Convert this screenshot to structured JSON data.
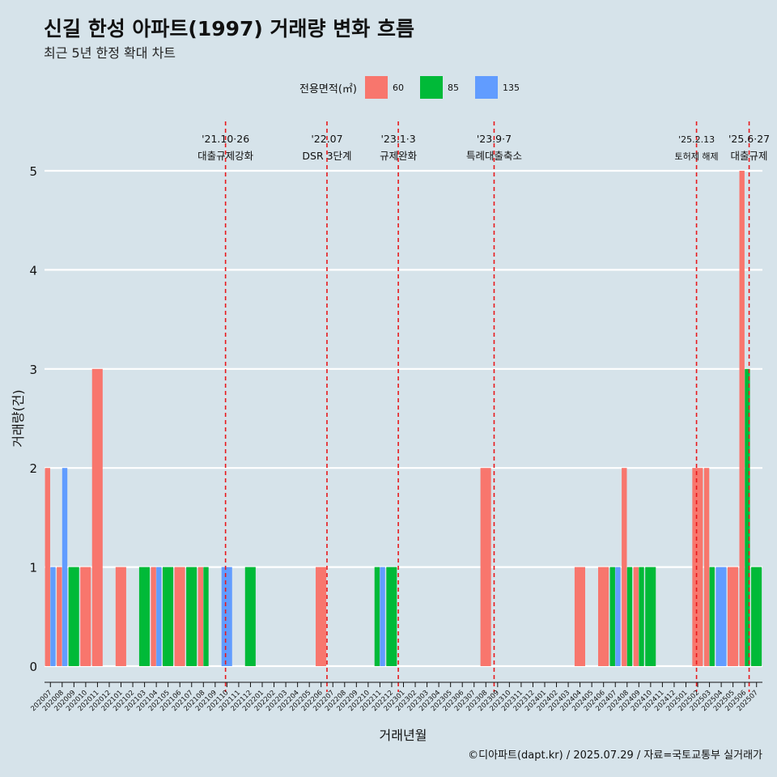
{
  "header": {
    "title": "신길 한성 아파트(1997) 거래량 변화 흐름",
    "subtitle": "최근 5년 한정 확대 차트"
  },
  "legend": {
    "title": "전용면적(㎡)",
    "items": [
      {
        "label": "60",
        "color": "#f8766d"
      },
      {
        "label": "85",
        "color": "#00ba38"
      },
      {
        "label": "135",
        "color": "#619cff"
      }
    ]
  },
  "footer": "©디아파트(dapt.kr) / 2025.07.29 / 자료=국토교통부 실거래가",
  "chart_data": {
    "type": "bar",
    "xlabel": "거래년월",
    "ylabel": "거래량(건)",
    "ylim": [
      0,
      5
    ],
    "yticks": [
      0,
      1,
      2,
      3,
      4,
      5
    ],
    "grid": true,
    "legend_position": "top",
    "categories": [
      "202007",
      "202008",
      "202009",
      "202010",
      "202011",
      "202012",
      "202101",
      "202102",
      "202103",
      "202104",
      "202105",
      "202106",
      "202107",
      "202108",
      "202109",
      "202110",
      "202111",
      "202112",
      "202201",
      "202202",
      "202203",
      "202204",
      "202205",
      "202206",
      "202207",
      "202208",
      "202209",
      "202210",
      "202211",
      "202212",
      "202301",
      "202302",
      "202303",
      "202304",
      "202305",
      "202306",
      "202307",
      "202308",
      "202309",
      "202310",
      "202311",
      "202312",
      "202401",
      "202402",
      "202403",
      "202404",
      "202405",
      "202406",
      "202407",
      "202408",
      "202409",
      "202410",
      "202411",
      "202412",
      "202501",
      "202502",
      "202503",
      "202504",
      "202505",
      "202506",
      "202507"
    ],
    "series": [
      {
        "name": "60",
        "color": "#f8766d",
        "values": [
          2,
          1,
          0,
          1,
          3,
          0,
          1,
          0,
          0,
          1,
          0,
          1,
          0,
          1,
          0,
          0,
          0,
          0,
          0,
          0,
          0,
          0,
          0,
          1,
          0,
          0,
          0,
          0,
          0,
          0,
          0,
          0,
          0,
          0,
          0,
          0,
          0,
          2,
          0,
          0,
          0,
          0,
          0,
          0,
          0,
          1,
          0,
          1,
          0,
          2,
          1,
          0,
          0,
          0,
          0,
          2,
          2,
          0,
          1,
          5,
          0
        ]
      },
      {
        "name": "85",
        "color": "#00ba38",
        "values": [
          0,
          0,
          1,
          0,
          0,
          0,
          0,
          0,
          1,
          0,
          1,
          0,
          1,
          1,
          0,
          0,
          0,
          1,
          0,
          0,
          0,
          0,
          0,
          0,
          0,
          0,
          0,
          0,
          1,
          1,
          0,
          0,
          0,
          0,
          0,
          0,
          0,
          0,
          0,
          0,
          0,
          0,
          0,
          0,
          0,
          0,
          0,
          0,
          1,
          1,
          1,
          1,
          0,
          0,
          0,
          0,
          1,
          0,
          0,
          3,
          1
        ]
      },
      {
        "name": "135",
        "color": "#619cff",
        "values": [
          1,
          2,
          0,
          0,
          0,
          0,
          0,
          0,
          0,
          1,
          0,
          0,
          0,
          0,
          0,
          1,
          0,
          0,
          0,
          0,
          0,
          0,
          0,
          0,
          0,
          0,
          0,
          0,
          1,
          0,
          0,
          0,
          0,
          0,
          0,
          0,
          0,
          0,
          0,
          0,
          0,
          0,
          0,
          0,
          0,
          0,
          0,
          0,
          1,
          0,
          0,
          0,
          0,
          0,
          0,
          0,
          0,
          1,
          0,
          0,
          0
        ]
      }
    ],
    "annotations": [
      {
        "category": "202110",
        "offset": 0.38,
        "date": "'21.10·26",
        "label": "대출규제강화",
        "small": false
      },
      {
        "category": "202207",
        "offset": 0.0,
        "date": "'22.07",
        "label": "DSR 3단계",
        "small": false
      },
      {
        "category": "202301",
        "offset": 0.06,
        "date": "'23.1·3",
        "label": "규제완화",
        "small": false
      },
      {
        "category": "202309",
        "offset": 0.2,
        "date": "'23.9·7",
        "label": "특례대출축소",
        "small": false
      },
      {
        "category": "202502",
        "offset": 0.4,
        "date": "'25.2.13",
        "label": "토허제 해제",
        "small": true
      },
      {
        "category": "202506",
        "offset": 0.87,
        "date": "'25.6·27",
        "label": "대출규제",
        "small": false
      }
    ]
  }
}
